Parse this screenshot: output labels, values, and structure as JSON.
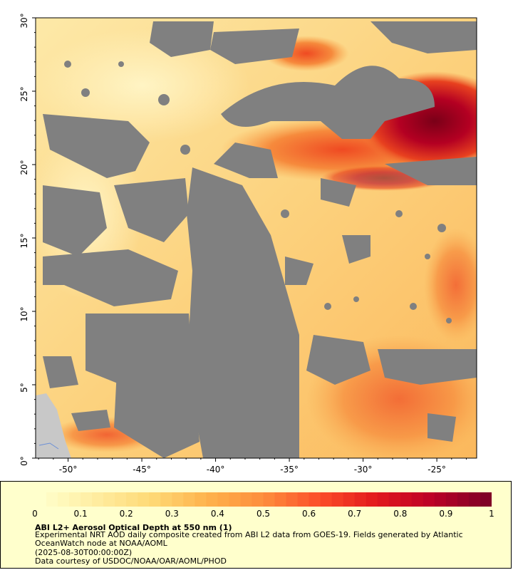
{
  "map": {
    "lon_labels": [
      "-50°",
      "-45°",
      "-40°",
      "-35°",
      "-30°",
      "-25°"
    ],
    "lat_labels": [
      "0°",
      "5°",
      "10°",
      "15°",
      "20°",
      "25°",
      "30°"
    ],
    "lon_range": [
      -52.2,
      -22.3
    ],
    "lat_range": [
      0,
      30
    ],
    "colors": {
      "no_data": "#808080",
      "land": "#c8c8c8",
      "low_aod": "#ffeaa6",
      "high_aod": "#7a0018"
    }
  },
  "legend": {
    "tick_labels": [
      "0",
      "0.1",
      "0.2",
      "0.3",
      "0.4",
      "0.5",
      "0.6",
      "0.7",
      "0.8",
      "0.9",
      "1"
    ],
    "range": [
      0,
      1
    ],
    "colors": [
      "#ffffcc",
      "#ffeda0",
      "#fed976",
      "#feb24c",
      "#fd8d3c",
      "#fc4e2a",
      "#e31a1c",
      "#bd0026",
      "#800026"
    ],
    "title": "ABI L2+ Aerosol Optical Depth at 550 nm (1)",
    "description": "Experimental NRT AOD daily composite created from ABI L2 data from GOES-19. Fields generated by Atlantic OceanWatch node at NOAA/AOML",
    "date": "(2025-08-30T00:00:00Z)",
    "credit": "Data courtesy of USDOC/NOAA/OAR/AOML/PHOD"
  }
}
